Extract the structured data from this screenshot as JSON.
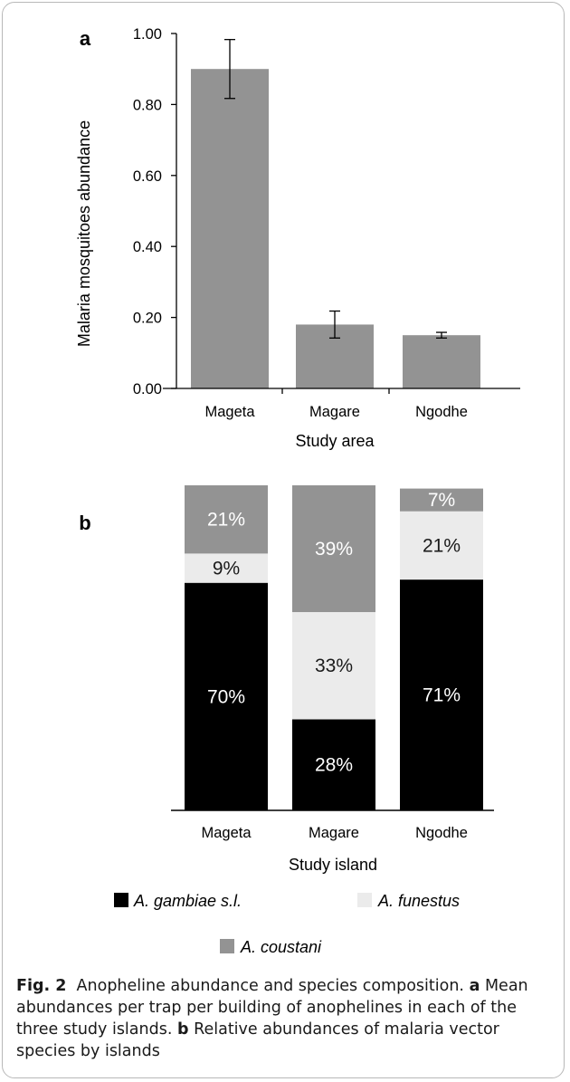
{
  "colors": {
    "bar_gray": "#939393",
    "gambiae": "#000000",
    "funestus": "#ebebeb",
    "coustani": "#939393",
    "axis": "#000000"
  },
  "chart_data": [
    {
      "type": "bar",
      "panel_label": "a",
      "categories": [
        "Mageta",
        "Magare",
        "Ngodhe"
      ],
      "values": [
        0.9,
        0.18,
        0.15
      ],
      "error": [
        0.083,
        0.038,
        0.008
      ],
      "ylabel": "Malaria mosquitoes abundance",
      "xlabel": "Study area",
      "ylim": [
        0,
        1.0
      ],
      "yticks": [
        "0.00",
        "0.20",
        "0.40",
        "0.60",
        "0.80",
        "1.00"
      ],
      "grid": false
    },
    {
      "type": "bar",
      "stacked": true,
      "percent": true,
      "panel_label": "b",
      "categories": [
        "Mageta",
        "Magare",
        "Ngodhe"
      ],
      "xlabel": "Study island",
      "series": [
        {
          "name": "A. gambiae s.l.",
          "values": [
            70,
            28,
            71
          ],
          "labels": [
            "70%",
            "28%",
            "71%"
          ]
        },
        {
          "name": "A. funestus",
          "values": [
            9,
            33,
            21
          ],
          "labels": [
            "9%",
            "33%",
            "21%"
          ]
        },
        {
          "name": "A. coustani",
          "values": [
            21,
            39,
            7
          ],
          "labels": [
            "21%",
            "39%",
            "7%"
          ]
        }
      ],
      "legend_position": "bottom"
    }
  ],
  "caption": {
    "fig_label": "Fig. 2",
    "title": "Anopheline abundance and species composition.",
    "panel_a_label": "a",
    "panel_a_text": "Mean abundances per trap per building of anophelines in each of the three study islands.",
    "panel_b_label": "b",
    "panel_b_text": "Relative abundances of malaria vector species by islands"
  }
}
